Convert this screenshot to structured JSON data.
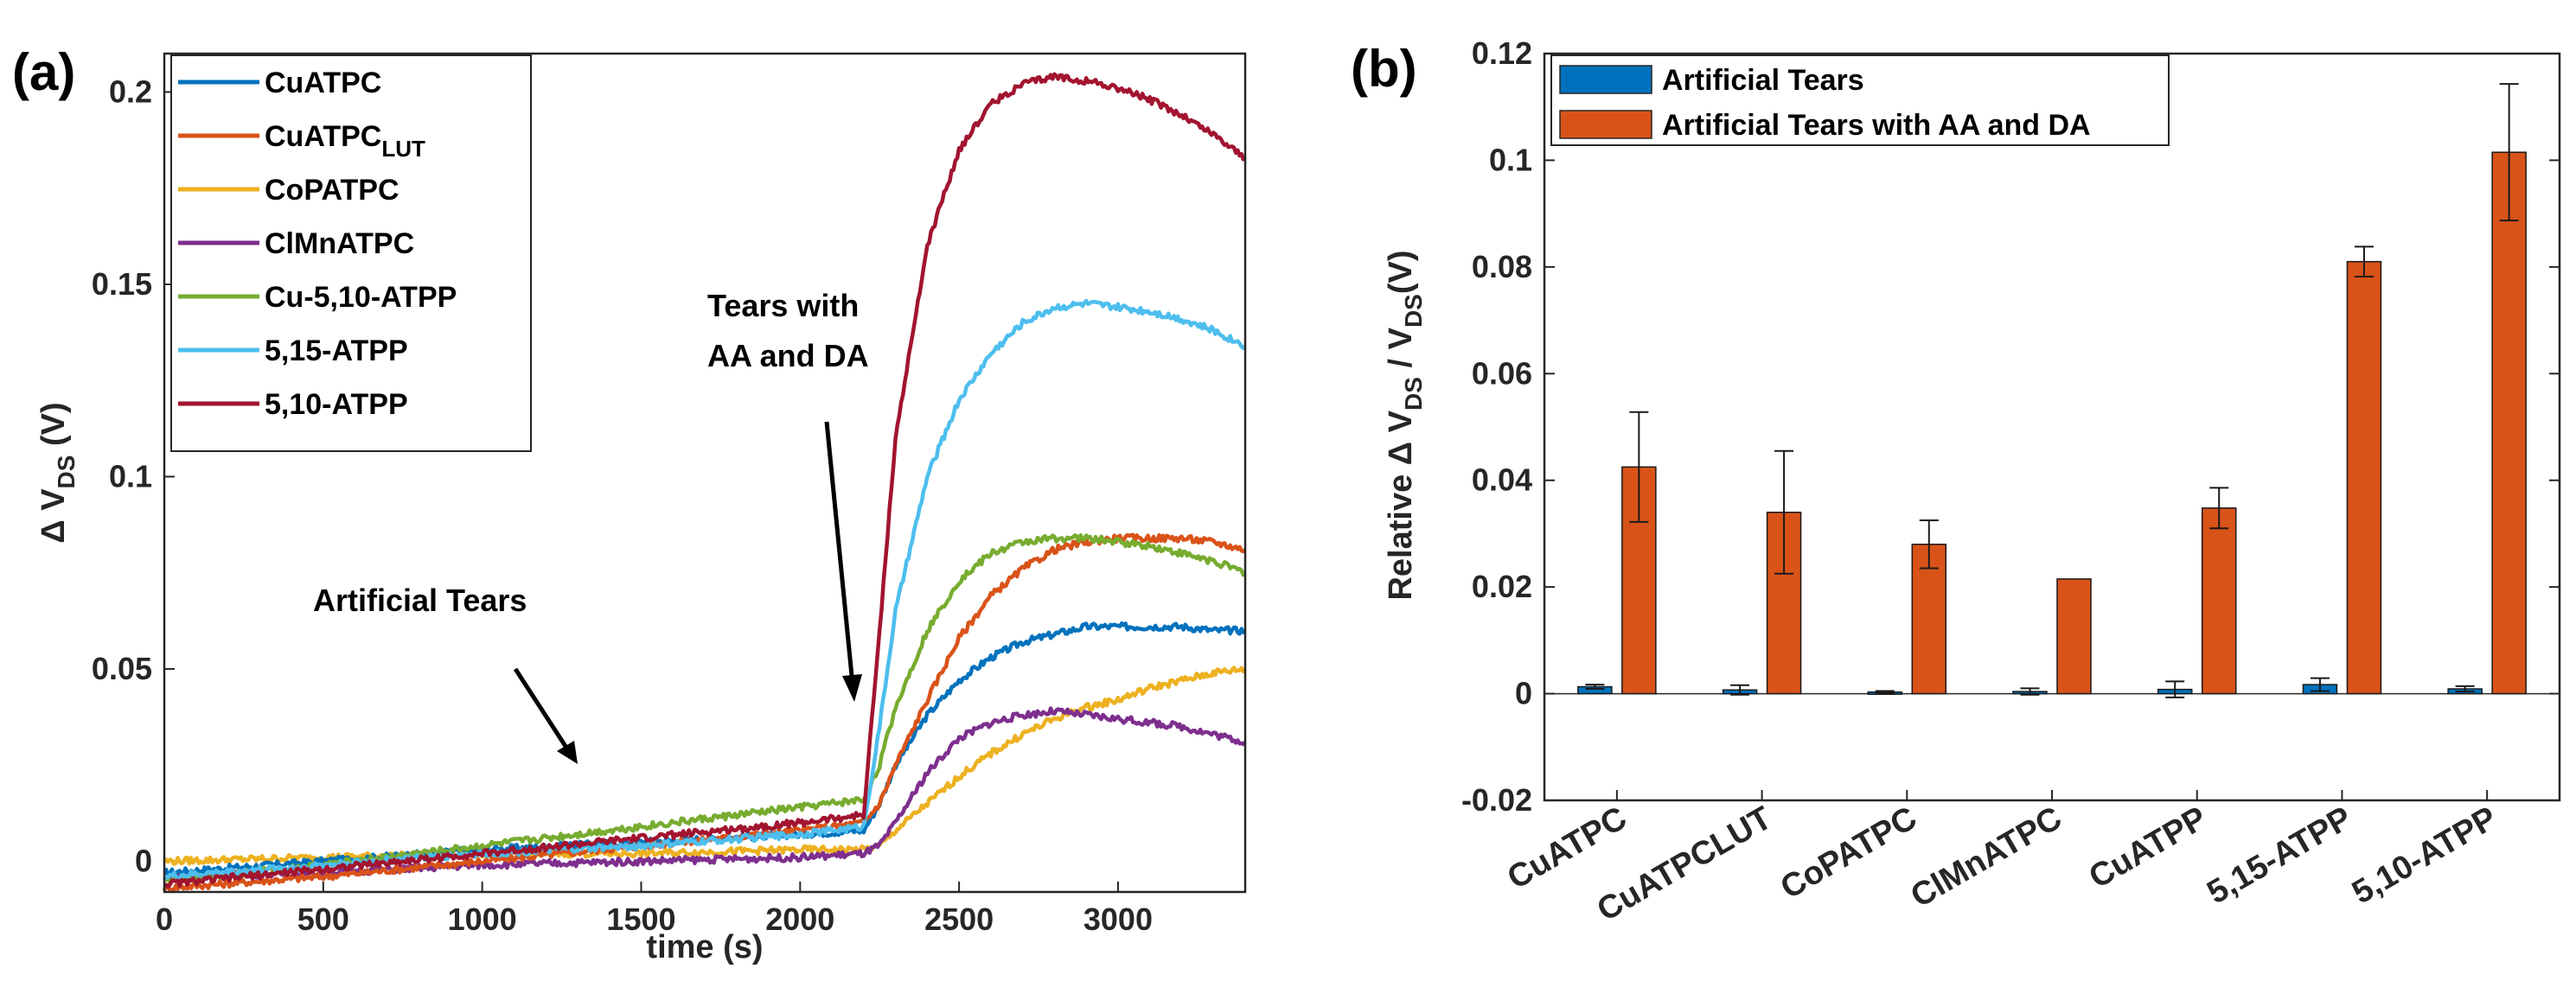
{
  "chart_data": [
    {
      "panel_label": "(a)",
      "type": "line",
      "xlabel": "time (s)",
      "ylabel": {
        "main": "Δ V",
        "sub": "DS",
        "unit": "(V)"
      },
      "xlim": [
        0,
        3400
      ],
      "ylim": [
        -0.008,
        0.21
      ],
      "xticks": [
        0,
        500,
        1000,
        1500,
        2000,
        2500,
        3000
      ],
      "yticks": [
        0,
        0.05,
        0.1,
        0.15,
        0.2
      ],
      "ytick_labels": [
        "0",
        "0.05",
        "0.1",
        "0.15",
        "0.2"
      ],
      "x": [
        0,
        500,
        1000,
        1500,
        2000,
        2200,
        2250,
        2300,
        2400,
        2500,
        2600,
        2700,
        2800,
        2900,
        3000,
        3100,
        3200,
        3300,
        3400
      ],
      "series": [
        {
          "name": "CuATPC",
          "color": "#0072BD",
          "values": [
            -0.003,
            0.0,
            0.003,
            0.005,
            0.007,
            0.008,
            0.015,
            0.025,
            0.038,
            0.047,
            0.053,
            0.057,
            0.059,
            0.061,
            0.061,
            0.061,
            0.061,
            0.06,
            0.06
          ]
        },
        {
          "name": "CuATPC",
          "name_sub": "LUT",
          "color": "#D95319",
          "values": [
            -0.007,
            -0.004,
            0.0,
            0.004,
            0.008,
            0.01,
            0.015,
            0.025,
            0.042,
            0.058,
            0.069,
            0.076,
            0.081,
            0.083,
            0.084,
            0.084,
            0.084,
            0.083,
            0.081
          ]
        },
        {
          "name": "CoPATPC",
          "color": "#EDB120",
          "values": [
            0.0,
            0.001,
            0.002,
            0.002,
            0.003,
            0.003,
            0.004,
            0.008,
            0.015,
            0.022,
            0.028,
            0.033,
            0.037,
            0.04,
            0.042,
            0.045,
            0.047,
            0.049,
            0.05
          ]
        },
        {
          "name": "ClMnATPC",
          "color": "#7E2F8E",
          "values": [
            -0.004,
            -0.003,
            -0.001,
            0.0,
            0.001,
            0.002,
            0.004,
            0.01,
            0.023,
            0.032,
            0.036,
            0.038,
            0.039,
            0.038,
            0.037,
            0.036,
            0.035,
            0.033,
            0.031
          ]
        },
        {
          "name": "Cu-5,10-ATPP",
          "color": "#77AC30",
          "values": [
            -0.005,
            -0.001,
            0.004,
            0.009,
            0.014,
            0.016,
            0.025,
            0.04,
            0.06,
            0.073,
            0.08,
            0.083,
            0.084,
            0.084,
            0.083,
            0.082,
            0.08,
            0.078,
            0.075
          ]
        },
        {
          "name": "5,15-ATPP",
          "color": "#4DBEEE",
          "values": [
            -0.004,
            -0.001,
            0.002,
            0.004,
            0.007,
            0.009,
            0.035,
            0.065,
            0.1,
            0.12,
            0.132,
            0.14,
            0.144,
            0.145,
            0.144,
            0.143,
            0.141,
            0.138,
            0.134
          ]
        },
        {
          "name": "5,10-ATPP",
          "color": "#A2142F",
          "values": [
            -0.006,
            -0.002,
            0.002,
            0.006,
            0.01,
            0.012,
            0.06,
            0.11,
            0.16,
            0.185,
            0.197,
            0.202,
            0.204,
            0.203,
            0.201,
            0.198,
            0.194,
            0.189,
            0.183
          ]
        }
      ],
      "annotations": [
        {
          "lines": [
            "Artificial Tears"
          ]
        },
        {
          "lines": [
            "Tears with",
            "AA and DA"
          ]
        }
      ]
    },
    {
      "panel_label": "(b)",
      "type": "bar",
      "ylabel": {
        "prefix": "Relative  Δ V",
        "sub1": "DS",
        "mid": " / V",
        "sub2": "DS",
        "unit": "(V)"
      },
      "categories": [
        "CuATPC",
        "CuATPCLUT",
        "CoPATPC",
        "ClMnATPC",
        "CuATPP",
        "5,15-ATPP",
        "5,10-ATPP"
      ],
      "ylim": [
        -0.02,
        0.12
      ],
      "yticks": [
        -0.02,
        0,
        0.02,
        0.04,
        0.06,
        0.08,
        0.1,
        0.12
      ],
      "ytick_labels": [
        "-0.02",
        "0",
        "0.02",
        "0.04",
        "0.06",
        "0.08",
        "0.1",
        "0.12"
      ],
      "series": [
        {
          "name": "Artificial Tears",
          "color": "#0072BD",
          "values": [
            0.0013,
            0.0007,
            0.0003,
            0.0004,
            0.0008,
            0.0017,
            0.0009
          ],
          "errors": [
            0.0004,
            0.0009,
            0.0002,
            0.0006,
            0.0015,
            0.0012,
            0.0005
          ]
        },
        {
          "name": "Artificial Tears with AA and DA",
          "color": "#D95319",
          "values": [
            0.0425,
            0.034,
            0.028,
            0.0215,
            0.0348,
            0.081,
            0.1015
          ],
          "errors": [
            0.0103,
            0.0115,
            0.0045,
            0.0,
            0.0038,
            0.0028,
            0.0128
          ]
        }
      ]
    }
  ]
}
